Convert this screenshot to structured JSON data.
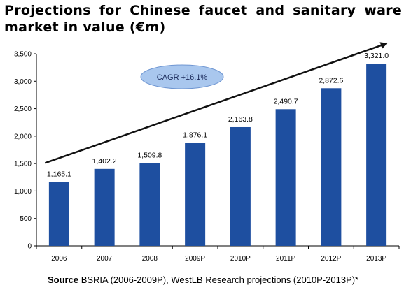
{
  "title_line1": "Projections for Chinese faucet and sanitary ware",
  "title_line2": "market in value (€m)",
  "source_label": "Source",
  "source_text": " BSRIA (2006-2009P), WestLB Research projections (2010P-2013P)*",
  "colors": {
    "bar": "#1e4fa0",
    "arrow": "#111111",
    "axis": "#000000",
    "cagr_fill": "#a9c7ee",
    "cagr_stroke": "#6f96d2"
  },
  "chart_data": {
    "type": "bar",
    "categories": [
      "2006",
      "2007",
      "2008",
      "2009P",
      "2010P",
      "2011P",
      "2012P",
      "2013P"
    ],
    "values": [
      1165.1,
      1402.2,
      1509.8,
      1876.1,
      2163.8,
      2490.7,
      2872.6,
      3321.0
    ],
    "data_labels": [
      "1,165.1",
      "1,402.2",
      "1,509.8",
      "1,876.1",
      "2,163.8",
      "2,490.7",
      "2,872.6",
      "3,321.0"
    ],
    "ylim": [
      0,
      3500
    ],
    "yticks": [
      0,
      500,
      1000,
      1500,
      2000,
      2500,
      3000,
      3500
    ],
    "ytick_labels": [
      "0",
      "500",
      "1,000",
      "1,500",
      "2,000",
      "2,500",
      "3,000",
      "3,500"
    ],
    "grid": false,
    "annotations": [
      {
        "type": "callout",
        "text": "CAGR +16.1%"
      },
      {
        "type": "trend-arrow",
        "from": {
          "x": "2006",
          "y": 1510
        },
        "to": {
          "x": "2013P",
          "y": 3690
        }
      }
    ]
  }
}
